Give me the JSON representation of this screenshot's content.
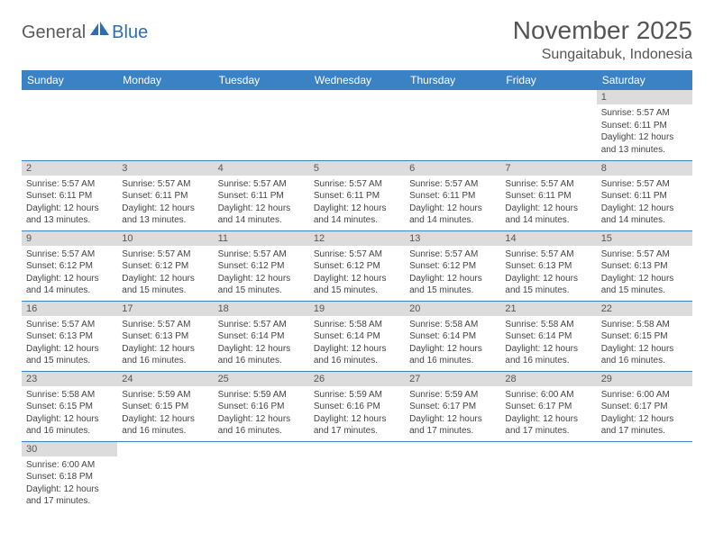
{
  "logo": {
    "text1": "General",
    "text2": "Blue"
  },
  "title": "November 2025",
  "location": "Sungaitabuk, Indonesia",
  "colors": {
    "header_bg": "#3b82c4",
    "header_text": "#ffffff",
    "daynum_bg": "#dcdcdc",
    "border": "#3b82c4",
    "logo_gray": "#5a5a5a",
    "logo_blue": "#2f6db3"
  },
  "weekdays": [
    "Sunday",
    "Monday",
    "Tuesday",
    "Wednesday",
    "Thursday",
    "Friday",
    "Saturday"
  ],
  "weeks": [
    [
      {
        "day": "",
        "lines": []
      },
      {
        "day": "",
        "lines": []
      },
      {
        "day": "",
        "lines": []
      },
      {
        "day": "",
        "lines": []
      },
      {
        "day": "",
        "lines": []
      },
      {
        "day": "",
        "lines": []
      },
      {
        "day": "1",
        "lines": [
          "Sunrise: 5:57 AM",
          "Sunset: 6:11 PM",
          "Daylight: 12 hours and 13 minutes."
        ]
      }
    ],
    [
      {
        "day": "2",
        "lines": [
          "Sunrise: 5:57 AM",
          "Sunset: 6:11 PM",
          "Daylight: 12 hours and 13 minutes."
        ]
      },
      {
        "day": "3",
        "lines": [
          "Sunrise: 5:57 AM",
          "Sunset: 6:11 PM",
          "Daylight: 12 hours and 13 minutes."
        ]
      },
      {
        "day": "4",
        "lines": [
          "Sunrise: 5:57 AM",
          "Sunset: 6:11 PM",
          "Daylight: 12 hours and 14 minutes."
        ]
      },
      {
        "day": "5",
        "lines": [
          "Sunrise: 5:57 AM",
          "Sunset: 6:11 PM",
          "Daylight: 12 hours and 14 minutes."
        ]
      },
      {
        "day": "6",
        "lines": [
          "Sunrise: 5:57 AM",
          "Sunset: 6:11 PM",
          "Daylight: 12 hours and 14 minutes."
        ]
      },
      {
        "day": "7",
        "lines": [
          "Sunrise: 5:57 AM",
          "Sunset: 6:11 PM",
          "Daylight: 12 hours and 14 minutes."
        ]
      },
      {
        "day": "8",
        "lines": [
          "Sunrise: 5:57 AM",
          "Sunset: 6:11 PM",
          "Daylight: 12 hours and 14 minutes."
        ]
      }
    ],
    [
      {
        "day": "9",
        "lines": [
          "Sunrise: 5:57 AM",
          "Sunset: 6:12 PM",
          "Daylight: 12 hours and 14 minutes."
        ]
      },
      {
        "day": "10",
        "lines": [
          "Sunrise: 5:57 AM",
          "Sunset: 6:12 PM",
          "Daylight: 12 hours and 15 minutes."
        ]
      },
      {
        "day": "11",
        "lines": [
          "Sunrise: 5:57 AM",
          "Sunset: 6:12 PM",
          "Daylight: 12 hours and 15 minutes."
        ]
      },
      {
        "day": "12",
        "lines": [
          "Sunrise: 5:57 AM",
          "Sunset: 6:12 PM",
          "Daylight: 12 hours and 15 minutes."
        ]
      },
      {
        "day": "13",
        "lines": [
          "Sunrise: 5:57 AM",
          "Sunset: 6:12 PM",
          "Daylight: 12 hours and 15 minutes."
        ]
      },
      {
        "day": "14",
        "lines": [
          "Sunrise: 5:57 AM",
          "Sunset: 6:13 PM",
          "Daylight: 12 hours and 15 minutes."
        ]
      },
      {
        "day": "15",
        "lines": [
          "Sunrise: 5:57 AM",
          "Sunset: 6:13 PM",
          "Daylight: 12 hours and 15 minutes."
        ]
      }
    ],
    [
      {
        "day": "16",
        "lines": [
          "Sunrise: 5:57 AM",
          "Sunset: 6:13 PM",
          "Daylight: 12 hours and 15 minutes."
        ]
      },
      {
        "day": "17",
        "lines": [
          "Sunrise: 5:57 AM",
          "Sunset: 6:13 PM",
          "Daylight: 12 hours and 16 minutes."
        ]
      },
      {
        "day": "18",
        "lines": [
          "Sunrise: 5:57 AM",
          "Sunset: 6:14 PM",
          "Daylight: 12 hours and 16 minutes."
        ]
      },
      {
        "day": "19",
        "lines": [
          "Sunrise: 5:58 AM",
          "Sunset: 6:14 PM",
          "Daylight: 12 hours and 16 minutes."
        ]
      },
      {
        "day": "20",
        "lines": [
          "Sunrise: 5:58 AM",
          "Sunset: 6:14 PM",
          "Daylight: 12 hours and 16 minutes."
        ]
      },
      {
        "day": "21",
        "lines": [
          "Sunrise: 5:58 AM",
          "Sunset: 6:14 PM",
          "Daylight: 12 hours and 16 minutes."
        ]
      },
      {
        "day": "22",
        "lines": [
          "Sunrise: 5:58 AM",
          "Sunset: 6:15 PM",
          "Daylight: 12 hours and 16 minutes."
        ]
      }
    ],
    [
      {
        "day": "23",
        "lines": [
          "Sunrise: 5:58 AM",
          "Sunset: 6:15 PM",
          "Daylight: 12 hours and 16 minutes."
        ]
      },
      {
        "day": "24",
        "lines": [
          "Sunrise: 5:59 AM",
          "Sunset: 6:15 PM",
          "Daylight: 12 hours and 16 minutes."
        ]
      },
      {
        "day": "25",
        "lines": [
          "Sunrise: 5:59 AM",
          "Sunset: 6:16 PM",
          "Daylight: 12 hours and 16 minutes."
        ]
      },
      {
        "day": "26",
        "lines": [
          "Sunrise: 5:59 AM",
          "Sunset: 6:16 PM",
          "Daylight: 12 hours and 17 minutes."
        ]
      },
      {
        "day": "27",
        "lines": [
          "Sunrise: 5:59 AM",
          "Sunset: 6:17 PM",
          "Daylight: 12 hours and 17 minutes."
        ]
      },
      {
        "day": "28",
        "lines": [
          "Sunrise: 6:00 AM",
          "Sunset: 6:17 PM",
          "Daylight: 12 hours and 17 minutes."
        ]
      },
      {
        "day": "29",
        "lines": [
          "Sunrise: 6:00 AM",
          "Sunset: 6:17 PM",
          "Daylight: 12 hours and 17 minutes."
        ]
      }
    ],
    [
      {
        "day": "30",
        "lines": [
          "Sunrise: 6:00 AM",
          "Sunset: 6:18 PM",
          "Daylight: 12 hours and 17 minutes."
        ]
      },
      {
        "day": "",
        "lines": []
      },
      {
        "day": "",
        "lines": []
      },
      {
        "day": "",
        "lines": []
      },
      {
        "day": "",
        "lines": []
      },
      {
        "day": "",
        "lines": []
      },
      {
        "day": "",
        "lines": []
      }
    ]
  ]
}
